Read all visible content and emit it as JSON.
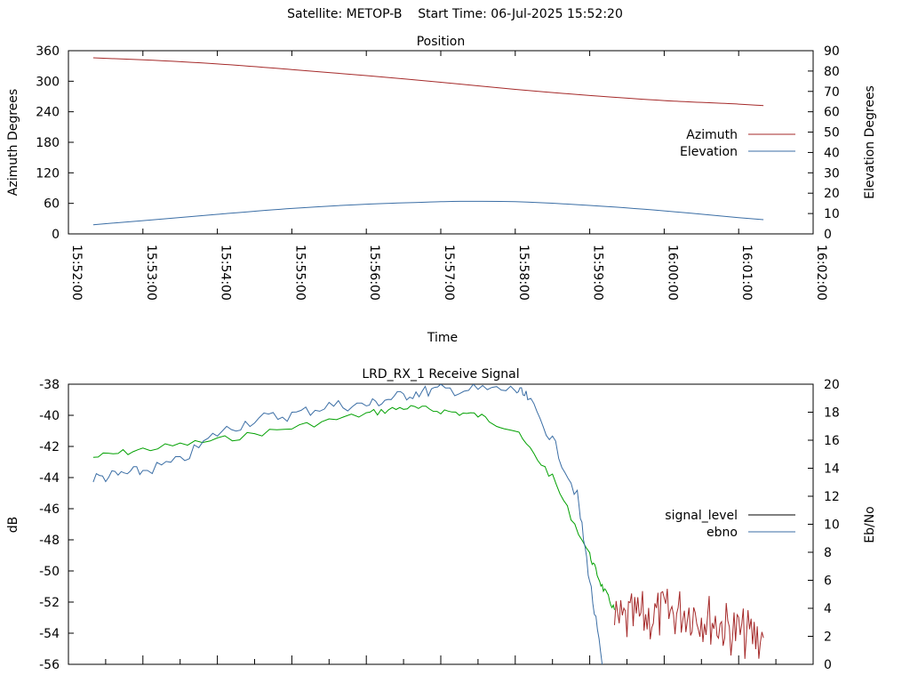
{
  "page": {
    "title": "Satellite: METOP-B    Start Time: 06-Jul-2025 15:52:20"
  },
  "chart_data": [
    {
      "type": "line",
      "title": "Position",
      "xlabel": "Time",
      "ylabel_left": "Azimuth Degrees",
      "ylabel_right": "Elevation Degrees",
      "x_ticks": [
        "15:52:00",
        "15:53:00",
        "15:54:00",
        "15:55:00",
        "15:56:00",
        "15:57:00",
        "15:58:00",
        "15:59:00",
        "16:00:00",
        "16:01:00",
        "16:02:00"
      ],
      "xlim": [
        "15:52:00",
        "16:02:00"
      ],
      "ylim_left": [
        0,
        360
      ],
      "ylim_right": [
        0,
        90
      ],
      "y_ticks_left": [
        "0",
        "60",
        "120",
        "180",
        "240",
        "300",
        "360"
      ],
      "y_ticks_right": [
        "0",
        "10",
        "20",
        "30",
        "40",
        "50",
        "60",
        "70",
        "80",
        "90"
      ],
      "legend_position": "right",
      "grid": false,
      "series": [
        {
          "name": "Azimuth",
          "axis": "left",
          "color": "#a52a2a",
          "x": [
            "15:52:20",
            "15:53:00",
            "15:54:00",
            "15:55:00",
            "15:56:00",
            "15:57:00",
            "15:58:00",
            "15:59:00",
            "16:00:00",
            "16:01:00",
            "16:01:20"
          ],
          "y": [
            346,
            342,
            334,
            323,
            311,
            298,
            284,
            272,
            262,
            255,
            252
          ]
        },
        {
          "name": "Elevation",
          "axis": "right",
          "color": "#3b6ea5",
          "x": [
            "15:52:20",
            "15:53:00",
            "15:54:00",
            "15:55:00",
            "15:56:00",
            "15:57:00",
            "15:57:20",
            "15:58:00",
            "15:59:00",
            "16:00:00",
            "16:01:00",
            "16:01:20"
          ],
          "y": [
            4.5,
            6.5,
            9.6,
            12.5,
            14.6,
            15.8,
            16.0,
            15.8,
            14.0,
            11.3,
            8.0,
            7.0
          ]
        }
      ]
    },
    {
      "type": "line",
      "title": "LRD_RX_1 Receive Signal",
      "xlabel": "",
      "ylabel_left": "dB",
      "ylabel_right": "Eb/No",
      "ylim_left": [
        -56,
        -38
      ],
      "ylim_right": [
        0,
        20
      ],
      "y_ticks_left": [
        "-38",
        "-40",
        "-42",
        "-44",
        "-46",
        "-48",
        "-50",
        "-52",
        "-54",
        "-56"
      ],
      "y_ticks_right": [
        "0",
        "2",
        "4",
        "6",
        "8",
        "10",
        "12",
        "14",
        "16",
        "18",
        "20"
      ],
      "legend_position": "right",
      "legend_entries": [
        {
          "name": "signal_level",
          "color": "#000000"
        },
        {
          "name": "ebno",
          "color": "#3b6ea5"
        }
      ],
      "grid": false,
      "series": [
        {
          "name": "signal_level (green trace)",
          "color": "#00a000",
          "x": [
            "15:52:20",
            "15:53:00",
            "15:54:00",
            "15:55:00",
            "15:56:00",
            "15:56:30",
            "15:57:00",
            "15:57:30",
            "15:58:00",
            "15:58:30",
            "15:59:00",
            "15:59:10",
            "15:59:20"
          ],
          "y": [
            -42.7,
            -42.2,
            -41.6,
            -40.8,
            -39.9,
            -39.5,
            -39.7,
            -40.0,
            -41.0,
            -44.0,
            -49.0,
            -51.0,
            -52.5
          ]
        },
        {
          "name": "signal_level (red noise after loss)",
          "color": "#a52a2a",
          "x": [
            "15:59:20",
            "15:59:40",
            "16:00:00",
            "16:00:20",
            "16:00:40",
            "16:01:00",
            "16:01:20"
          ],
          "y": [
            -53.5,
            -53.0,
            -52.8,
            -52.5,
            -53.2,
            -54.0,
            -54.3
          ]
        },
        {
          "name": "ebno",
          "color": "#3b6ea5",
          "x": [
            "15:52:20",
            "15:52:40",
            "15:53:00",
            "15:53:30",
            "15:54:00",
            "15:54:30",
            "15:55:00",
            "15:55:30",
            "15:56:00",
            "15:56:20",
            "15:56:40",
            "15:57:00",
            "15:57:30",
            "15:58:00",
            "15:58:10",
            "15:58:30",
            "15:58:50",
            "15:59:00",
            "15:59:10"
          ],
          "y": [
            13.3,
            13.5,
            13.8,
            14.5,
            16.5,
            17.5,
            17.8,
            18.5,
            18.5,
            19.0,
            19.4,
            19.6,
            19.6,
            19.6,
            19.0,
            16.0,
            12.0,
            6.0,
            0.0
          ]
        }
      ]
    }
  ]
}
